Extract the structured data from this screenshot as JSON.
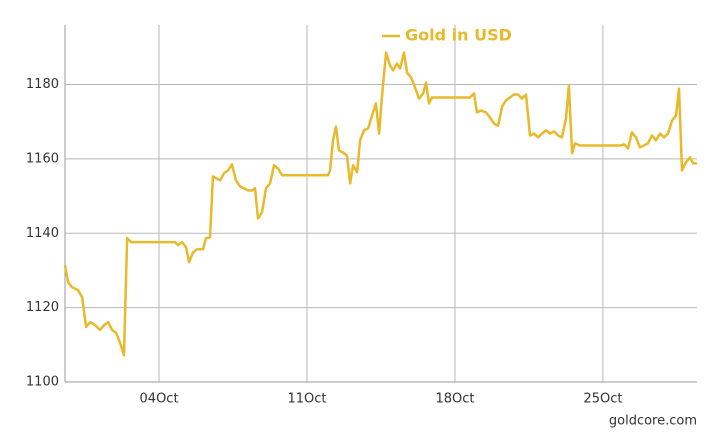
{
  "chart_data": {
    "type": "line",
    "watermark": "goldcore.com",
    "legend": "top",
    "grid": true,
    "xlim": [
      -0.45,
      29.45
    ],
    "xticks": [
      {
        "value": 4,
        "label": "04Oct"
      },
      {
        "value": 11,
        "label": "11Oct"
      },
      {
        "value": 18,
        "label": "18Oct"
      },
      {
        "value": 25,
        "label": "25Oct"
      }
    ],
    "ylim": [
      1100,
      1196
    ],
    "yticks": [
      1100,
      1120,
      1140,
      1160,
      1180
    ],
    "x": [
      -0.45,
      -0.3,
      -0.12,
      0.17,
      0.36,
      0.55,
      0.74,
      0.97,
      1.21,
      1.4,
      1.59,
      1.78,
      1.97,
      2.16,
      2.34,
      2.49,
      2.68,
      3.1,
      3.57,
      4.05,
      4.52,
      4.76,
      4.9,
      5.09,
      5.28,
      5.42,
      5.61,
      5.8,
      6.08,
      6.22,
      6.41,
      6.55,
      6.7,
      6.89,
      7.07,
      7.26,
      7.45,
      7.64,
      7.83,
      8.02,
      8.21,
      8.4,
      8.54,
      8.68,
      8.87,
      9.06,
      9.25,
      9.44,
      9.63,
      9.82,
      10.2,
      10.67,
      11.14,
      11.62,
      11.99,
      12.09,
      12.23,
      12.37,
      12.51,
      12.7,
      12.89,
      13.04,
      13.18,
      13.37,
      13.51,
      13.7,
      13.89,
      14.08,
      14.26,
      14.41,
      14.55,
      14.74,
      14.93,
      15.07,
      15.26,
      15.4,
      15.59,
      15.73,
      15.92,
      16.11,
      16.3,
      16.49,
      16.63,
      16.77,
      16.91,
      17.29,
      17.77,
      18.24,
      18.71,
      18.9,
      19.04,
      19.23,
      19.47,
      19.66,
      19.85,
      20.04,
      20.23,
      20.41,
      20.6,
      20.79,
      20.98,
      21.17,
      21.36,
      21.55,
      21.74,
      21.93,
      22.12,
      22.31,
      22.5,
      22.69,
      22.87,
      23.06,
      23.25,
      23.39,
      23.54,
      23.68,
      23.91,
      24.39,
      24.86,
      25.33,
      25.81,
      26.0,
      26.19,
      26.37,
      26.56,
      26.75,
      26.94,
      27.13,
      27.32,
      27.51,
      27.7,
      27.89,
      28.08,
      28.27,
      28.46,
      28.6,
      28.74,
      28.93,
      29.12,
      29.26,
      29.45
    ],
    "series": [
      {
        "name": "Gold in USD",
        "color": "#e8b92b",
        "values": [
          1131.4,
          1126.8,
          1125.5,
          1124.7,
          1122.8,
          1114.8,
          1116.1,
          1115.3,
          1114.0,
          1115.3,
          1116.1,
          1114.0,
          1113.2,
          1110.5,
          1107.2,
          1138.7,
          1137.6,
          1137.6,
          1137.6,
          1137.6,
          1137.6,
          1137.6,
          1136.8,
          1137.6,
          1136.2,
          1132.2,
          1134.9,
          1135.7,
          1135.7,
          1138.7,
          1138.9,
          1155.3,
          1154.8,
          1154.2,
          1156.1,
          1156.9,
          1158.5,
          1154.2,
          1152.6,
          1152.1,
          1151.5,
          1151.5,
          1152.1,
          1144.0,
          1145.6,
          1152.1,
          1153.4,
          1158.3,
          1157.4,
          1155.6,
          1155.6,
          1155.6,
          1155.6,
          1155.6,
          1155.6,
          1156.9,
          1165.0,
          1168.7,
          1162.3,
          1161.7,
          1160.9,
          1153.4,
          1158.3,
          1156.4,
          1165.0,
          1167.7,
          1168.2,
          1171.7,
          1174.9,
          1166.8,
          1177.0,
          1188.6,
          1185.1,
          1183.8,
          1185.6,
          1184.3,
          1188.6,
          1183.2,
          1181.9,
          1179.2,
          1176.2,
          1177.6,
          1180.5,
          1174.9,
          1176.5,
          1176.5,
          1176.5,
          1176.5,
          1176.5,
          1177.6,
          1172.5,
          1173.0,
          1172.5,
          1171.1,
          1169.5,
          1168.9,
          1174.1,
          1175.7,
          1176.5,
          1177.3,
          1177.3,
          1176.2,
          1177.3,
          1166.3,
          1166.8,
          1165.8,
          1166.8,
          1167.7,
          1166.8,
          1167.4,
          1166.3,
          1165.8,
          1170.9,
          1179.7,
          1161.5,
          1164.2,
          1163.6,
          1163.6,
          1163.6,
          1163.6,
          1163.6,
          1163.9,
          1162.8,
          1167.1,
          1165.8,
          1163.1,
          1163.6,
          1164.2,
          1166.3,
          1165.0,
          1166.8,
          1165.8,
          1166.8,
          1170.3,
          1171.7,
          1178.9,
          1156.9,
          1159.1,
          1160.4,
          1158.8,
          1158.8
        ]
      }
    ]
  }
}
